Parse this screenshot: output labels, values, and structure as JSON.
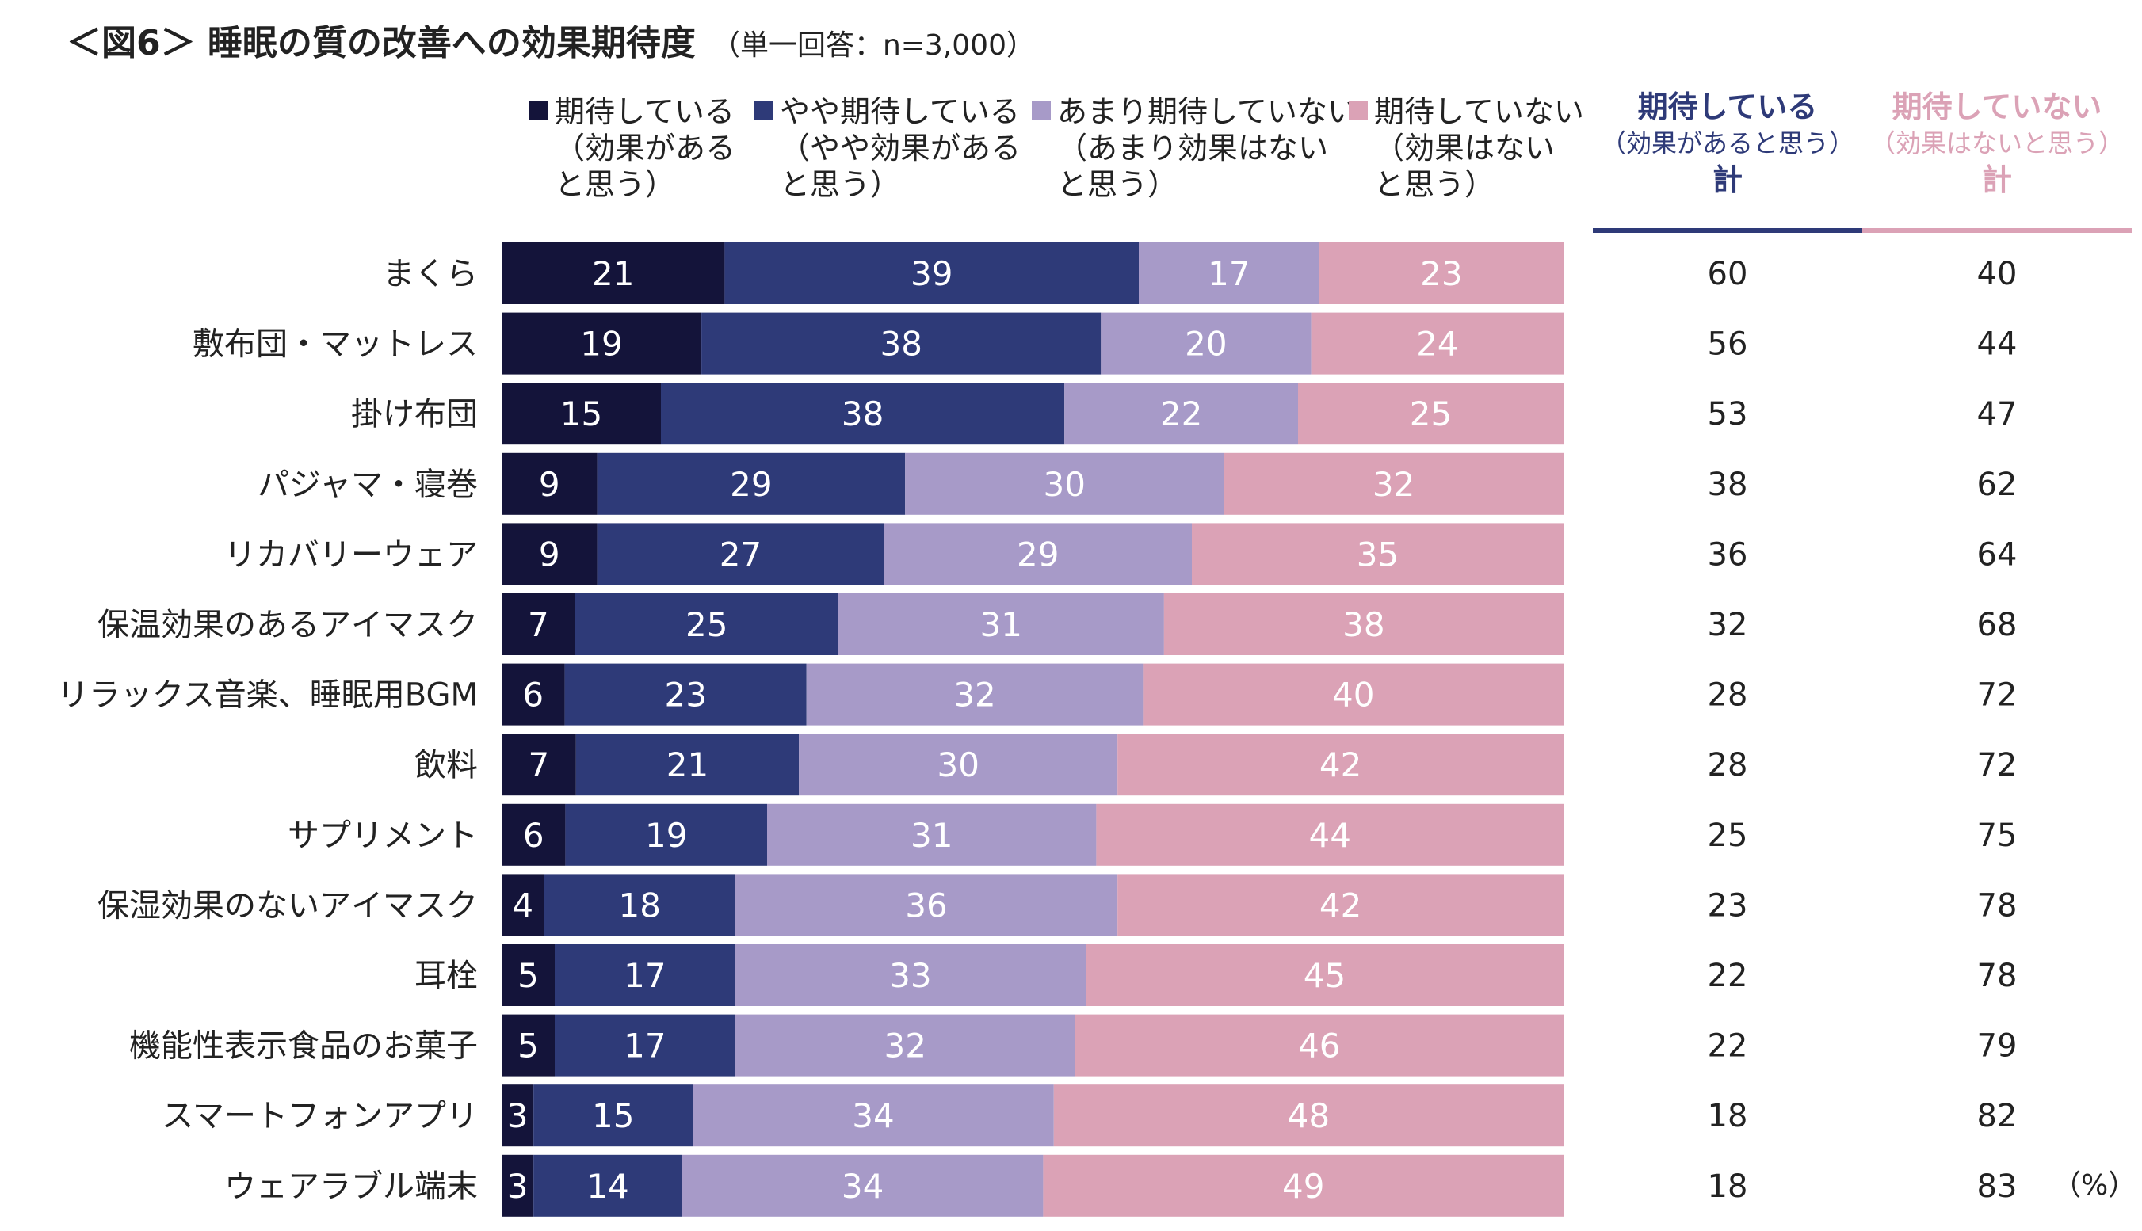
{
  "header": {
    "title": "＜図6＞ 睡眠の質の改善への効果期待度",
    "subtitle": "（単一回答：n=3,000）"
  },
  "chart_data": {
    "type": "bar",
    "orientation": "horizontal",
    "stacked": true,
    "title": "＜図6＞ 睡眠の質の改善への効果期待度",
    "categories": [
      "まくら",
      "敷布団・マットレス",
      "掛け布団",
      "パジャマ・寝巻",
      "リカバリーウェア",
      "保温効果のあるアイマスク",
      "リラックス音楽、睡眠用BGM",
      "飲料",
      "サプリメント",
      "保湿効果のないアイマスク",
      "耳栓",
      "機能性表示食品のお菓子",
      "スマートフォンアプリ",
      "ウェアラブル端末"
    ],
    "series": [
      {
        "name": "期待している",
        "name_sub1": "（効果がある",
        "name_sub2": "と思う）",
        "color": "#14143a",
        "values": [
          21,
          19,
          15,
          9,
          9,
          7,
          6,
          7,
          6,
          4,
          5,
          5,
          3,
          3
        ]
      },
      {
        "name": "やや期待している",
        "name_sub1": "（やや効果がある",
        "name_sub2": "と思う）",
        "color": "#2e3a78",
        "values": [
          39,
          38,
          38,
          29,
          27,
          25,
          23,
          21,
          19,
          18,
          17,
          17,
          15,
          14
        ]
      },
      {
        "name": "あまり期待していない",
        "name_sub1": "（あまり効果はない",
        "name_sub2": "と思う）",
        "color": "#a79ac8",
        "values": [
          17,
          20,
          22,
          30,
          29,
          31,
          32,
          30,
          31,
          36,
          33,
          32,
          34,
          34
        ]
      },
      {
        "name": "期待していない",
        "name_sub1": "（効果はない",
        "name_sub2": "と思う）",
        "color": "#dba2b6",
        "values": [
          23,
          24,
          25,
          32,
          35,
          38,
          40,
          42,
          44,
          42,
          45,
          46,
          48,
          49
        ]
      }
    ],
    "totals": [
      {
        "title": "期待している",
        "sub": "（効果があると思う）",
        "foot": "計",
        "color": "#2e3a78",
        "values": [
          60,
          56,
          53,
          38,
          36,
          32,
          28,
          28,
          25,
          23,
          22,
          22,
          18,
          18
        ]
      },
      {
        "title": "期待していない",
        "sub": "（効果はないと思う）",
        "foot": "計",
        "color": "#dba2b6",
        "values": [
          40,
          44,
          47,
          62,
          64,
          68,
          72,
          72,
          75,
          78,
          78,
          79,
          82,
          83
        ]
      }
    ],
    "unit": "（%）",
    "xlim": [
      0,
      100
    ]
  }
}
